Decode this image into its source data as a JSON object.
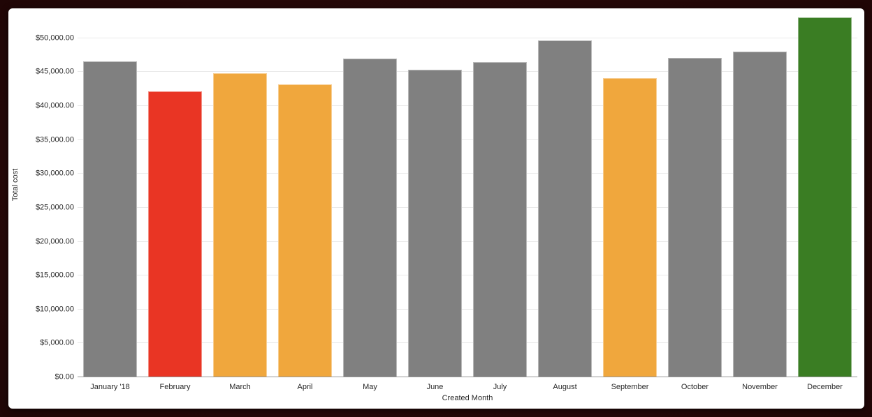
{
  "window": {
    "background_color": "#2b0b0b",
    "card_background_color": "#ffffff"
  },
  "chart_data": {
    "type": "bar",
    "title": "",
    "xlabel": "Created Month",
    "ylabel": "Total cost",
    "categories": [
      "January '18",
      "February",
      "March",
      "April",
      "May",
      "June",
      "July",
      "August",
      "September",
      "October",
      "November",
      "December"
    ],
    "values": [
      46600,
      42150,
      44800,
      43150,
      47000,
      45350,
      46450,
      49700,
      44100,
      47100,
      48050,
      53050
    ],
    "bar_colors": [
      "#808080",
      "#e93524",
      "#f0a73d",
      "#f0a73d",
      "#808080",
      "#808080",
      "#808080",
      "#808080",
      "#f0a73d",
      "#808080",
      "#808080",
      "#3a7d23"
    ],
    "color_legend": {
      "default": "#808080",
      "red": "#e93524",
      "orange": "#f0a73d",
      "green": "#3a7d23"
    },
    "ylim": [
      0,
      54400
    ],
    "ytick_step": 5000,
    "ytick_labels": [
      "$0.00",
      "$5,000.00",
      "$10,000.00",
      "$15,000.00",
      "$20,000.00",
      "$25,000.00",
      "$30,000.00",
      "$35,000.00",
      "$40,000.00",
      "$45,000.00",
      "$50,000.00"
    ],
    "grid": "horizontal",
    "legend_position": "none"
  }
}
